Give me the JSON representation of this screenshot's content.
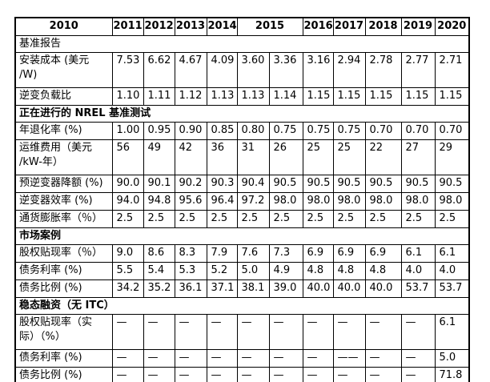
{
  "colors": {
    "background": "#ffffff",
    "text": "#000000",
    "border": "#000000"
  },
  "table": {
    "header": {
      "cells": [
        {
          "label": "2010",
          "span": 1
        },
        {
          "label": "2011",
          "span": 1
        },
        {
          "label": "2012",
          "span": 1
        },
        {
          "label": "2013",
          "span": 1
        },
        {
          "label": "2014",
          "span": 1
        },
        {
          "label": "2015",
          "span": 2
        },
        {
          "label": "2016",
          "span": 1
        },
        {
          "label": "2017",
          "span": 1
        },
        {
          "label": "2018",
          "span": 1
        },
        {
          "label": "2019",
          "span": 1
        },
        {
          "label": "2020",
          "span": 1
        }
      ]
    },
    "rows": [
      {
        "type": "section",
        "label": "基准报告",
        "bold": false
      },
      {
        "type": "data",
        "label": "安装成本 (美元\n/W)",
        "values": [
          "7.53",
          "6.62",
          "4.67",
          "4.09",
          "3.60",
          "3.36",
          "3.16",
          "2.94",
          "2.78",
          "2.77",
          "2.71"
        ]
      },
      {
        "type": "data",
        "label": "逆变负载比",
        "values": [
          "1.10",
          "1.11",
          "1.12",
          "1.13",
          "1.13",
          "1.14",
          "1.15",
          "1.15",
          "1.15",
          "1.15",
          "1.15"
        ]
      },
      {
        "type": "section",
        "label": "正在进行的 NREL 基准测试",
        "bold": true
      },
      {
        "type": "data",
        "label": "年退化率 (%)",
        "values": [
          "1.00",
          "0.95",
          "0.90",
          "0.85",
          "0.80",
          "0.75",
          "0.75",
          "0.75",
          "0.70",
          "0.70",
          "0.70"
        ]
      },
      {
        "type": "data",
        "label": "运维费用（美元\n/kW-年）",
        "values": [
          "56",
          "49",
          "42",
          "36",
          "31",
          "26",
          "25",
          "25",
          "22",
          "27",
          "29"
        ]
      },
      {
        "type": "data",
        "label": "预逆变器降额 (%)",
        "values": [
          "90.0",
          "90.1",
          "90.2",
          "90.3",
          "90.4",
          "90.5",
          "90.5",
          "90.5",
          "90.5",
          "90.5",
          "90.5"
        ]
      },
      {
        "type": "data",
        "label": "逆变器效率 (%)",
        "values": [
          "94.0",
          "94.8",
          "95.6",
          "96.4",
          "97.2",
          "98.0",
          "98.0",
          "98.0",
          "98.0",
          "98.0",
          "98.0"
        ]
      },
      {
        "type": "data",
        "label": "通货膨胀率（％）",
        "values": [
          "2.5",
          "2.5",
          "2.5",
          "2.5",
          "2.5",
          "2.5",
          "2.5",
          "2.5",
          "2.5",
          "2.5",
          "2.5"
        ]
      },
      {
        "type": "section",
        "label": "市场案例",
        "bold": true
      },
      {
        "type": "data",
        "label": "股权贴现率（％）",
        "values": [
          "9.0",
          "8.6",
          "8.3",
          "7.9",
          "7.6",
          "7.3",
          "6.9",
          "6.9",
          "6.9",
          "6.1",
          "6.1"
        ]
      },
      {
        "type": "data",
        "label": "债务利率 (%)",
        "values": [
          "5.5",
          "5.4",
          "5.3",
          "5.2",
          "5.0",
          "4.9",
          "4.8",
          "4.8",
          "4.8",
          "4.0",
          "4.0"
        ]
      },
      {
        "type": "data",
        "label": "债务比例 (%)",
        "values": [
          "34.2",
          "35.2",
          "36.1",
          "37.1",
          "38.1",
          "39.0",
          "40.0",
          "40.0",
          "40.0",
          "53.7",
          "53.7"
        ]
      },
      {
        "type": "section",
        "label": "稳态融资（无 ITC）",
        "bold": true
      },
      {
        "type": "data",
        "label": "股权贴现率（实\n际）（%）",
        "values": [
          "—",
          "—",
          "—",
          "—",
          "—",
          "—",
          "—",
          "—",
          "—",
          "—",
          "6.1"
        ]
      },
      {
        "type": "data",
        "label": "债务利率 (%)",
        "values": [
          "—",
          "—",
          "—",
          "—",
          "—",
          "—",
          "—",
          "——",
          "—",
          "—",
          "5.0"
        ]
      },
      {
        "type": "data",
        "label": "债务比例 (%)",
        "values": [
          "—",
          "—",
          "—",
          "—",
          "—",
          "—",
          "—",
          "—",
          "—",
          "—",
          "71.8"
        ]
      }
    ]
  }
}
